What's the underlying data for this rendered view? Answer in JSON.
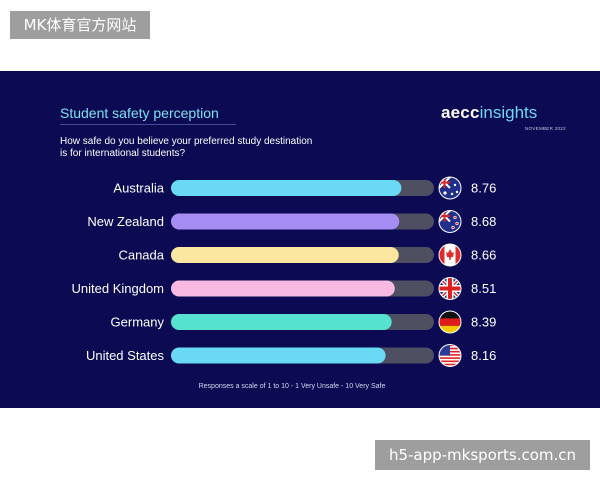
{
  "watermark_top": "MK体育官方网站",
  "watermark_bottom": "h5-app-mksports.com.cn",
  "brand": {
    "name_bold": "aecc",
    "name_light": "insights",
    "date": "NOVEMBER 2022"
  },
  "chart_data": {
    "type": "bar",
    "orientation": "horizontal",
    "title": "Student safety perception",
    "subtitle": "How safe do you believe your preferred study destination is for international students?",
    "categories": [
      "Australia",
      "New Zealand",
      "Canada",
      "United Kingdom",
      "Germany",
      "United States"
    ],
    "values": [
      8.76,
      8.68,
      8.66,
      8.51,
      8.39,
      8.16
    ],
    "value_labels": [
      "8.76",
      "8.68",
      "8.66",
      "8.51",
      "8.39",
      "8.16"
    ],
    "flags": [
      "australia-flag",
      "new-zealand-flag",
      "canada-flag",
      "united-kingdom-flag",
      "germany-flag",
      "united-states-flag"
    ],
    "bar_colors": [
      "#6ad9f3",
      "#a48cf2",
      "#fbe7a0",
      "#f8b9e3",
      "#55e3cf",
      "#6ad9f3"
    ],
    "track_color": "#4f4f62",
    "xlim": [
      0,
      10
    ],
    "grid": false,
    "note": "Responses a scale of 1 to 10 - 1 Very Unsafe - 10 Very Safe"
  }
}
